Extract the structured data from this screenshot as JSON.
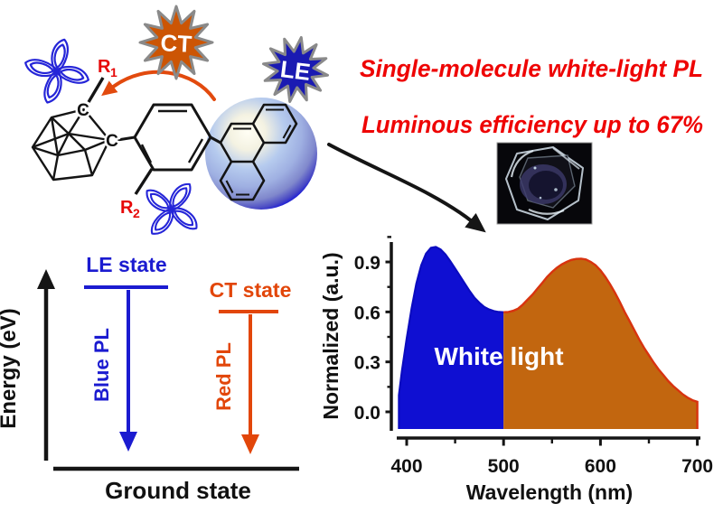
{
  "headline": {
    "line1": "Single-molecule white-light PL",
    "line2": "Luminous efficiency up to 67%",
    "color": "#ee0404"
  },
  "molecule": {
    "cage_carbon_top": "C",
    "cage_carbon_right": "C",
    "r1": {
      "base": "R",
      "sub": "1"
    },
    "r2": {
      "base": "R",
      "sub": "2"
    },
    "label_color": "#e60808"
  },
  "badges": {
    "ct": {
      "label": "CT",
      "fill": "#cc5504",
      "text_color": "#ffffff"
    },
    "le": {
      "label": "LE",
      "fill": "#1a1ab2",
      "text_color": "#ffffff"
    }
  },
  "energy_diagram": {
    "axis_label": "Energy (eV)",
    "le_state_label": "LE state",
    "ct_state_label": "CT state",
    "blue_pl_label": "Blue PL",
    "red_pl_label": "Red PL",
    "ground_state_label": "Ground state",
    "le_color": "#1b1bd0",
    "ct_color": "#e2460a"
  },
  "chart_data": {
    "type": "area",
    "title": "",
    "xlabel": "Wavelength (nm)",
    "ylabel": "Normalized (a.u.)",
    "xlim": [
      379,
      704
    ],
    "ylim": [
      -0.12,
      1.06
    ],
    "xticks": [
      400,
      500,
      600,
      700
    ],
    "xticks_minor": [
      450,
      550,
      650
    ],
    "yticks": [
      0.0,
      0.3,
      0.6,
      0.9
    ],
    "yticks_minor": [
      0.15,
      0.45,
      0.75,
      1.05
    ],
    "grid": false,
    "legend": false,
    "annotation": "White light",
    "annotation_color": "#ffffff",
    "split_x": 500,
    "baseline_y": -0.103,
    "colors": {
      "blue_fill": "#0f0fd2",
      "blue_edge": "#0b0bc0",
      "orange_fill": "#c2660f",
      "orange_edge": "#d8330f"
    },
    "series": [
      {
        "name": "PL spectrum",
        "x": [
          392,
          395,
          400,
          405,
          410,
          415,
          420,
          425,
          430,
          435,
          440,
          445,
          450,
          455,
          460,
          465,
          470,
          475,
          480,
          485,
          490,
          495,
          500,
          505,
          510,
          515,
          520,
          525,
          530,
          535,
          540,
          545,
          550,
          555,
          560,
          565,
          570,
          575,
          580,
          585,
          590,
          595,
          600,
          605,
          610,
          615,
          620,
          625,
          630,
          635,
          640,
          645,
          650,
          655,
          660,
          665,
          670,
          675,
          680,
          685,
          690,
          695,
          700
        ],
        "y": [
          0.1,
          0.24,
          0.44,
          0.62,
          0.77,
          0.88,
          0.95,
          0.985,
          0.99,
          0.975,
          0.945,
          0.905,
          0.86,
          0.815,
          0.77,
          0.725,
          0.685,
          0.655,
          0.63,
          0.615,
          0.605,
          0.6,
          0.598,
          0.6,
          0.607,
          0.62,
          0.645,
          0.675,
          0.705,
          0.74,
          0.775,
          0.81,
          0.84,
          0.865,
          0.885,
          0.9,
          0.912,
          0.918,
          0.92,
          0.915,
          0.9,
          0.88,
          0.85,
          0.81,
          0.765,
          0.715,
          0.66,
          0.6,
          0.545,
          0.49,
          0.435,
          0.385,
          0.34,
          0.295,
          0.255,
          0.22,
          0.185,
          0.155,
          0.13,
          0.105,
          0.085,
          0.07,
          0.06
        ]
      }
    ]
  }
}
